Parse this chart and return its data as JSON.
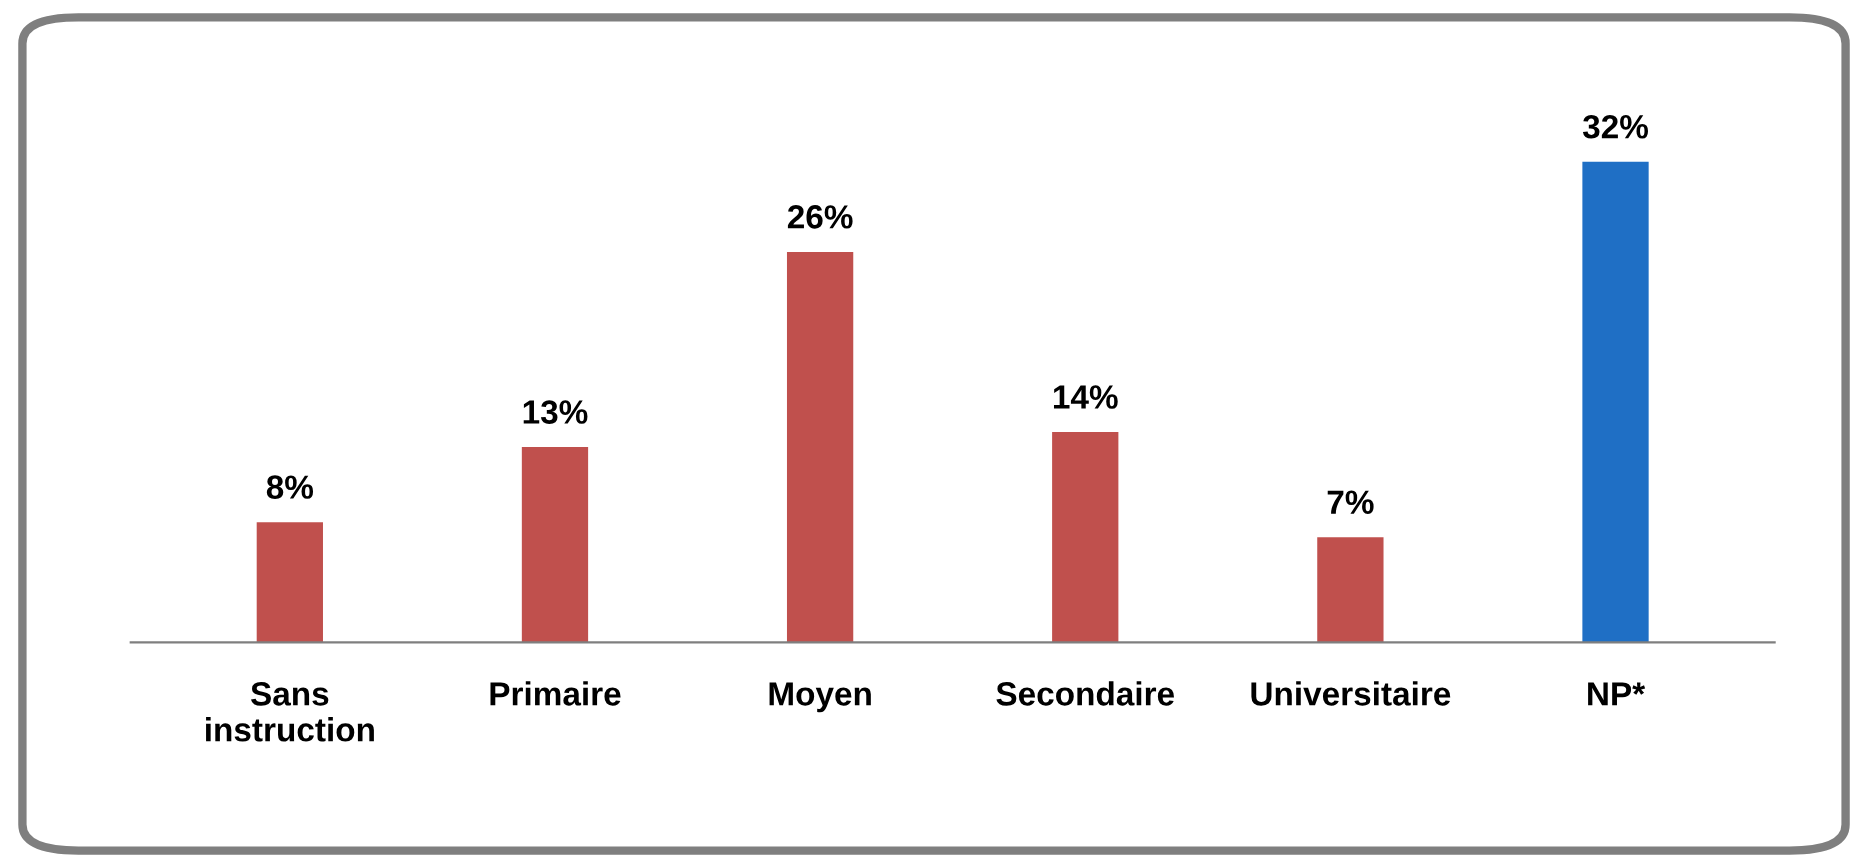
{
  "chart_data": {
    "type": "bar",
    "categories": [
      "Sans\ninstruction",
      "Primaire",
      "Moyen",
      "Secondaire",
      "Universitaire",
      "NP*"
    ],
    "values": [
      8,
      13,
      26,
      14,
      7,
      32
    ],
    "colors": [
      "#c0504d",
      "#c0504d",
      "#c0504d",
      "#c0504d",
      "#c0504d",
      "#1f6fc5"
    ],
    "value_labels": [
      "8%",
      "13%",
      "26%",
      "14%",
      "7%",
      "32%"
    ],
    "grid": false,
    "legend": false
  }
}
